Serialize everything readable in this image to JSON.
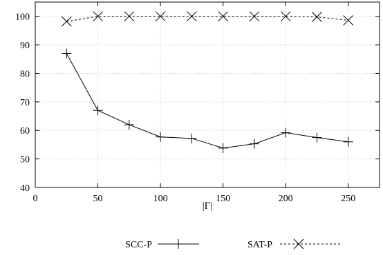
{
  "chart_data": {
    "type": "line",
    "xlabel": "|Γ|",
    "ylabel": "",
    "xlim": [
      0,
      275
    ],
    "ylim": [
      40,
      105
    ],
    "xticks": [
      0,
      50,
      100,
      150,
      200,
      250
    ],
    "yticks": [
      40,
      50,
      60,
      70,
      80,
      90,
      100
    ],
    "grid": true,
    "legend_position": "bottom",
    "x": [
      25,
      50,
      75,
      100,
      125,
      150,
      175,
      200,
      225,
      250
    ],
    "series": [
      {
        "name": "SCC-P",
        "marker": "plus",
        "line": "solid",
        "values": [
          87,
          67,
          62,
          57.7,
          57.2,
          53.8,
          55.3,
          59.2,
          57.5,
          56
        ]
      },
      {
        "name": "SAT-P",
        "marker": "cross",
        "line": "dashed",
        "values": [
          98.2,
          100,
          100,
          100,
          100,
          100,
          100,
          100,
          99.8,
          98.6
        ]
      }
    ]
  }
}
